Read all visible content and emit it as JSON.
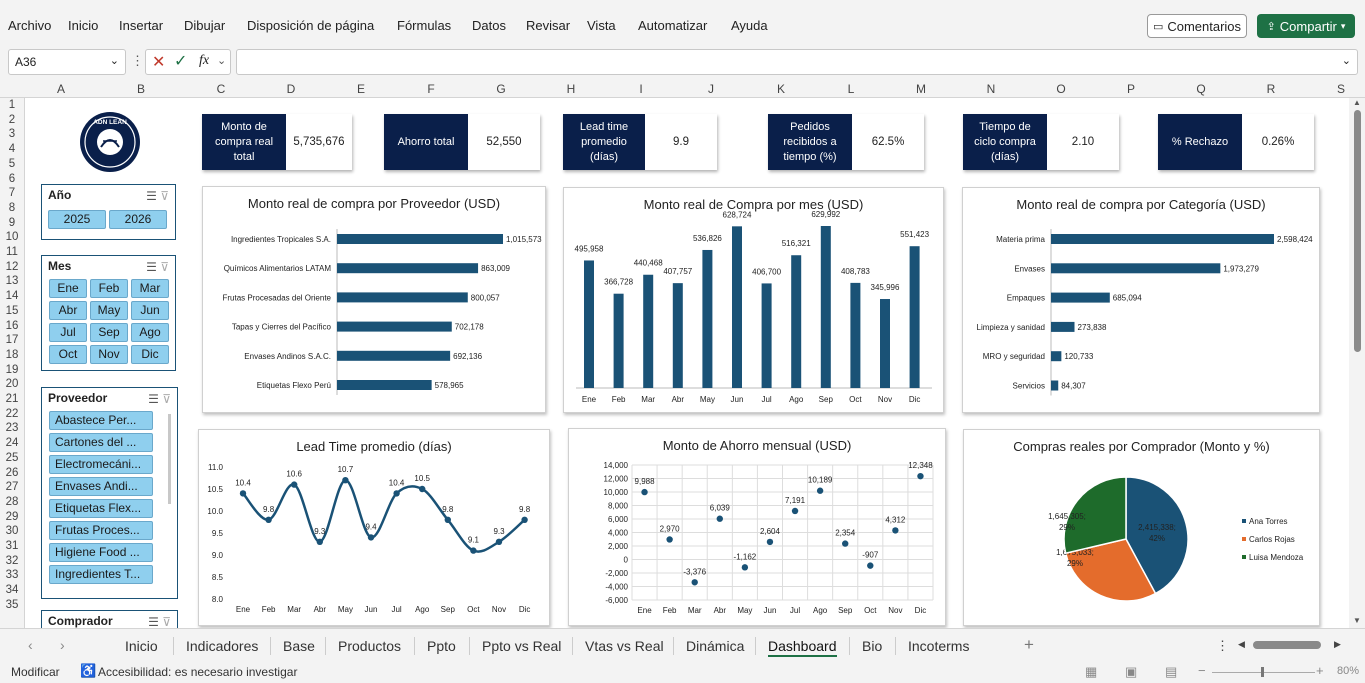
{
  "menu": [
    "Archivo",
    "Inicio",
    "Insertar",
    "Dibujar",
    "Disposición de página",
    "Fórmulas",
    "Datos",
    "Revisar",
    "Vista",
    "Automatizar",
    "Ayuda"
  ],
  "buttons": {
    "comments": "Comentarios",
    "share": "Compartir"
  },
  "formula_bar": {
    "name_box": "A36",
    "fx": "fx",
    "formula": ""
  },
  "columns": [
    "A",
    "B",
    "C",
    "D",
    "E",
    "F",
    "G",
    "H",
    "I",
    "J",
    "K",
    "L",
    "M",
    "N",
    "O",
    "P",
    "Q",
    "R",
    "S"
  ],
  "rows": [
    "1",
    "2",
    "3",
    "4",
    "5",
    "6",
    "7",
    "8",
    "9",
    "10",
    "11",
    "12",
    "13",
    "14",
    "15",
    "16",
    "17",
    "18",
    "19",
    "20",
    "21",
    "22",
    "23",
    "24",
    "25",
    "26",
    "27",
    "28",
    "29",
    "30",
    "31",
    "32",
    "33",
    "34",
    "35"
  ],
  "logo": {
    "text": "ADN LEAN"
  },
  "kpis": [
    {
      "label": "Monto de compra real total",
      "value": "5,735,676"
    },
    {
      "label": "Ahorro total",
      "value": "52,550"
    },
    {
      "label": "Lead time promedio (días)",
      "value": "9.9"
    },
    {
      "label": "Pedidos recibidos a tiempo (%)",
      "value": "62.5%"
    },
    {
      "label": "Tiempo de ciclo compra (días)",
      "value": "2.10"
    },
    {
      "label": "% Rechazo",
      "value": "0.26%"
    }
  ],
  "slicers": {
    "year": {
      "title": "Año",
      "items": [
        "2025",
        "2026"
      ]
    },
    "month": {
      "title": "Mes",
      "items": [
        "Ene",
        "Feb",
        "Mar",
        "Abr",
        "May",
        "Jun",
        "Jul",
        "Sep",
        "Ago",
        "Oct",
        "Nov",
        "Dic"
      ]
    },
    "supplier": {
      "title": "Proveedor",
      "items": [
        "Abastece Per...",
        "Cartones del ...",
        "Electromecáni...",
        "Envases Andi...",
        "Etiquetas Flex...",
        "Frutas Proces...",
        "Higiene Food ...",
        "Ingredientes T..."
      ]
    },
    "buyer": {
      "title": "Comprador"
    }
  },
  "chart_data": [
    {
      "type": "bar",
      "orientation": "horizontal",
      "title": "Monto real de compra por Proveedor (USD)",
      "categories": [
        "Ingredientes Tropicales S.A.",
        "Químicos Alimentarios LATAM",
        "Frutas Procesadas del Oriente",
        "Tapas y Cierres del Pacífico",
        "Envases Andinos S.A.C.",
        "Etiquetas Flexo Perú"
      ],
      "values": [
        1015573,
        863009,
        800057,
        702178,
        692136,
        578965
      ],
      "labels": [
        "1,015,573",
        "863,009",
        "800,057",
        "702,178",
        "692,136",
        "578,965"
      ],
      "color": "#1a5276"
    },
    {
      "type": "bar",
      "title": "Monto real de Compra por mes (USD)",
      "categories": [
        "Ene",
        "Feb",
        "Mar",
        "Abr",
        "May",
        "Jun",
        "Jul",
        "Ago",
        "Sep",
        "Oct",
        "Nov",
        "Dic"
      ],
      "values": [
        495958,
        366728,
        440468,
        407757,
        536826,
        628724,
        406700,
        516321,
        629992,
        408783,
        345996,
        551423
      ],
      "labels": [
        "495,958",
        "366,728",
        "440,468",
        "407,757",
        "536,826",
        "628,724",
        "406,700",
        "516,321",
        "629,992",
        "408,783",
        "345,996",
        "551,423"
      ],
      "color": "#1a5276"
    },
    {
      "type": "bar",
      "orientation": "horizontal",
      "title": "Monto real de compra por Categoría (USD)",
      "categories": [
        "Materia prima",
        "Envases",
        "Empaques",
        "Limpieza y sanidad",
        "MRO y seguridad",
        "Servicios"
      ],
      "values": [
        2598424,
        1973279,
        685094,
        273838,
        120733,
        84307
      ],
      "labels": [
        "2,598,424",
        "1,973,279",
        "685,094",
        "273,838",
        "120,733",
        "84,307"
      ],
      "color": "#1a5276"
    },
    {
      "type": "line",
      "title": "Lead Time promedio (días)",
      "categories": [
        "Ene",
        "Feb",
        "Mar",
        "Abr",
        "May",
        "Jun",
        "Jul",
        "Ago",
        "Sep",
        "Oct",
        "Nov",
        "Dic"
      ],
      "values": [
        10.4,
        9.8,
        10.6,
        9.3,
        10.7,
        9.4,
        10.4,
        10.5,
        9.8,
        9.1,
        9.3,
        9.8
      ],
      "labels": [
        "10.4",
        "9.8",
        "10.6",
        "9.3",
        "10.7",
        "9.4",
        "10.4",
        "10.5",
        "9.8",
        "9.1",
        "9.3",
        "9.8"
      ],
      "yticks": [
        "11.0",
        "10.5",
        "10.0",
        "9.5",
        "9.0",
        "8.5",
        "8.0"
      ],
      "ylim": [
        8,
        11
      ],
      "color": "#1a5276"
    },
    {
      "type": "scatter",
      "title": "Monto de Ahorro mensual (USD)",
      "categories": [
        "Ene",
        "Feb",
        "Mar",
        "Abr",
        "May",
        "Jun",
        "Jul",
        "Ago",
        "Sep",
        "Oct",
        "Nov",
        "Dic"
      ],
      "values": [
        9988,
        2970,
        -3376,
        6039,
        -1162,
        2604,
        7191,
        10189,
        2354,
        -907,
        4312,
        12348
      ],
      "labels": [
        "9,988",
        "2,970",
        "-3,376",
        "6,039",
        "-1,162",
        "2,604",
        "7,191",
        "10,189",
        "2,354",
        "-907",
        "4,312",
        "12,348"
      ],
      "yticks": [
        "14,000",
        "12,000",
        "10,000",
        "8,000",
        "6,000",
        "4,000",
        "2,000",
        "0",
        "-2,000",
        "-4,000",
        "-6,000"
      ],
      "ylim": [
        -6000,
        14000
      ],
      "grid": true,
      "color": "#1a5276"
    },
    {
      "type": "pie",
      "title": "Compras reales por Comprador (Monto y %)",
      "categories": [
        "Ana Torres",
        "Carlos Rojas",
        "Luisa Mendoza"
      ],
      "values": [
        2415338,
        1675033,
        1645305
      ],
      "labels": [
        "2,415,338; 42%",
        "1,675,033; 29%",
        "1,645,305; 29%"
      ],
      "colors": [
        "#1a5276",
        "#e46c2c",
        "#1e6b2b"
      ],
      "legend": "right"
    }
  ],
  "sheet_tabs": [
    "Inicio",
    "Indicadores",
    "Base",
    "Productos",
    "Ppto",
    "Ppto vs Real",
    "Vtas vs Real",
    "Dinámica",
    "Dashboard",
    "Bio",
    "Incoterms"
  ],
  "active_tab": "Dashboard",
  "status": {
    "mode": "Modificar",
    "accessibility": "Accesibilidad: es necesario investigar",
    "zoom": "80%"
  }
}
